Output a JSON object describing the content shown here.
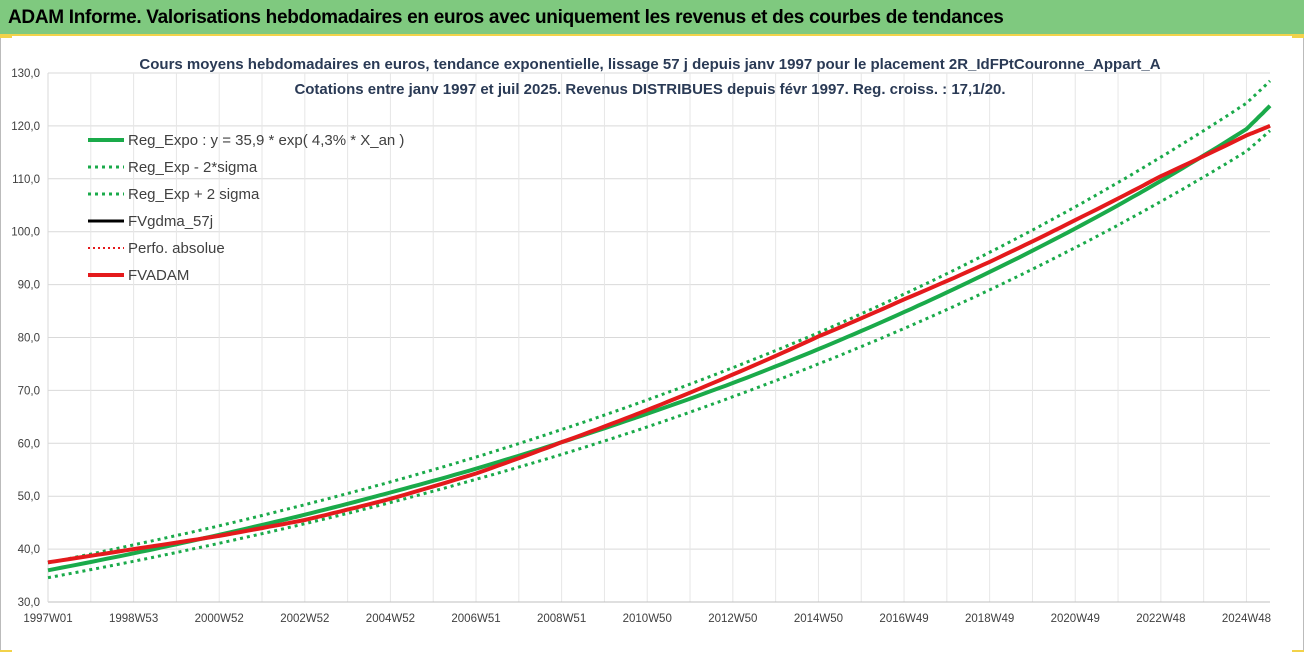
{
  "banner": {
    "title": "ADAM Informe. Valorisations hebdomadaires en euros avec uniquement les revenus et des courbes de tendances"
  },
  "chart_data": {
    "type": "line",
    "title_line1": "Cours moyens hebdomadaires en euros, tendance exponentielle, lissage 57 j depuis janv 1997  pour le placement 2R_IdFPtCouronne_Appart_A",
    "title_line2": "Cotations entre janv 1997 et juil 2025. Revenus DISTRIBUES depuis févr 1997. Reg. croiss. : 17,1/20.",
    "ylim": [
      30,
      130
    ],
    "yticks": [
      "30,0",
      "40,0",
      "50,0",
      "60,0",
      "70,0",
      "80,0",
      "90,0",
      "100,0",
      "110,0",
      "120,0",
      "130,0"
    ],
    "xlim": [
      1997.0,
      2025.55
    ],
    "xticks": [
      {
        "label": "1997W01",
        "x": 1997.0
      },
      {
        "label": "1998W53",
        "x": 1999.0
      },
      {
        "label": "2000W52",
        "x": 2001.0
      },
      {
        "label": "2002W52",
        "x": 2003.0
      },
      {
        "label": "2004W52",
        "x": 2005.0
      },
      {
        "label": "2006W51",
        "x": 2007.0
      },
      {
        "label": "2008W51",
        "x": 2009.0
      },
      {
        "label": "2010W50",
        "x": 2011.0
      },
      {
        "label": "2012W50",
        "x": 2013.0
      },
      {
        "label": "2014W50",
        "x": 2015.0
      },
      {
        "label": "2016W49",
        "x": 2017.0
      },
      {
        "label": "2018W49",
        "x": 2019.0
      },
      {
        "label": "2020W49",
        "x": 2021.0
      },
      {
        "label": "2022W48",
        "x": 2023.0
      },
      {
        "label": "2024W48",
        "x": 2025.0
      }
    ],
    "grid": true,
    "legend_position": "top-left",
    "series": [
      {
        "name": "Reg_Expo : y = 35,9 * exp( 4,3% *  X_an )",
        "color": "#1aaa4a",
        "style": "solid",
        "width": 4,
        "x": [
          1997,
          1999,
          2001,
          2003,
          2005,
          2007,
          2009,
          2011,
          2013,
          2015,
          2017,
          2019,
          2021,
          2023,
          2025,
          2025.55
        ],
        "y": [
          36.0,
          39.2,
          42.7,
          46.5,
          50.7,
          55.2,
          60.2,
          65.6,
          71.4,
          77.8,
          84.8,
          92.4,
          100.6,
          109.6,
          119.4,
          123.8
        ]
      },
      {
        "name": "Reg_Exp - 2*sigma",
        "color": "#1aaa4a",
        "style": "dotted",
        "width": 3,
        "x": [
          1997,
          1999,
          2001,
          2003,
          2005,
          2007,
          2009,
          2011,
          2013,
          2015,
          2017,
          2019,
          2021,
          2023,
          2025,
          2025.55
        ],
        "y": [
          34.6,
          37.7,
          41.1,
          44.8,
          48.8,
          53.2,
          57.9,
          63.1,
          68.8,
          75.0,
          81.7,
          89.0,
          97.0,
          105.7,
          115.2,
          119.1
        ]
      },
      {
        "name": "Reg_Exp + 2 sigma",
        "color": "#1aaa4a",
        "style": "dotted",
        "width": 3,
        "x": [
          1997,
          1999,
          2001,
          2003,
          2005,
          2007,
          2009,
          2011,
          2013,
          2015,
          2017,
          2019,
          2021,
          2023,
          2025,
          2025.55
        ],
        "y": [
          37.4,
          40.8,
          44.4,
          48.4,
          52.7,
          57.4,
          62.6,
          68.2,
          74.3,
          80.9,
          88.2,
          96.1,
          104.7,
          114.1,
          124.3,
          128.5
        ]
      },
      {
        "name": "FVgdma_57j",
        "color": "#000000",
        "style": "solid",
        "width": 3,
        "x": [
          1997,
          1999,
          2001,
          2003,
          2005,
          2007,
          2009,
          2011,
          2013,
          2015,
          2017,
          2019,
          2021,
          2023,
          2025,
          2025.55
        ],
        "y": [
          37.5,
          40.0,
          42.5,
          45.5,
          49.5,
          54.3,
          60.2,
          66.3,
          73.0,
          80.2,
          87.2,
          94.3,
          102.2,
          110.5,
          118.2,
          120.0
        ]
      },
      {
        "name": "Perfo. absolue",
        "color": "#e41a1c",
        "style": "dotted",
        "width": 2,
        "x": [
          1997,
          1999,
          2001,
          2003,
          2005,
          2007,
          2009,
          2011,
          2013,
          2015,
          2017,
          2019,
          2021,
          2023,
          2025,
          2025.55
        ],
        "y": [
          37.5,
          40.0,
          42.5,
          45.5,
          49.5,
          54.3,
          60.2,
          66.3,
          73.0,
          80.2,
          87.2,
          94.3,
          102.2,
          110.5,
          118.2,
          120.0
        ]
      },
      {
        "name": "FVADAM",
        "color": "#e41a1c",
        "style": "solid",
        "width": 4,
        "x": [
          1997,
          1999,
          2001,
          2003,
          2005,
          2007,
          2009,
          2011,
          2013,
          2015,
          2017,
          2019,
          2021,
          2023,
          2025,
          2025.55
        ],
        "y": [
          37.5,
          40.0,
          42.5,
          45.5,
          49.5,
          54.3,
          60.2,
          66.3,
          73.0,
          80.2,
          87.2,
          94.3,
          102.2,
          110.5,
          118.2,
          120.0
        ]
      }
    ]
  }
}
